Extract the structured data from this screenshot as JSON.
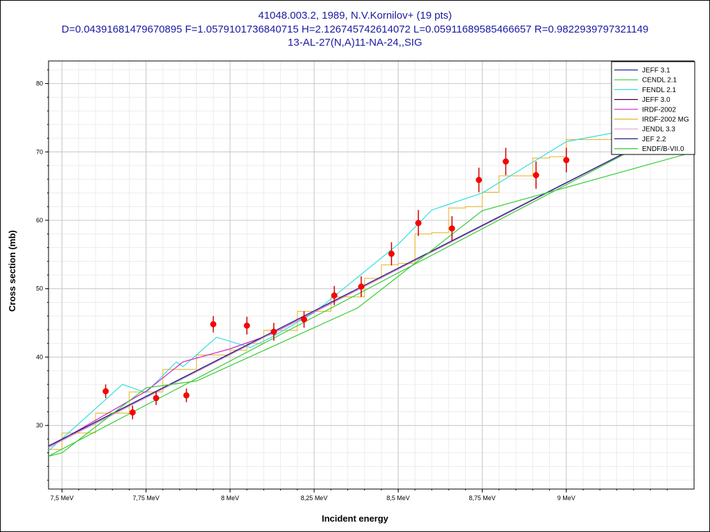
{
  "title_lines": [
    "41048.003.2, 1989, N.V.Kornilov+ (19 pts)",
    "D=0.04391681479670895 F=1.0579101736840715 H=2.126745742614072 L=0.05911689585466657 R=0.9822939797321149",
    "13-AL-27(N,A)11-NA-24,,SIG"
  ],
  "chart_data": {
    "type": "line",
    "xlabel": "Incident energy",
    "ylabel": "Cross section (mb)",
    "xlim": [
      7.46,
      9.38
    ],
    "ylim": [
      20.7,
      83.3
    ],
    "x_ticks": [
      7.5,
      7.75,
      8.0,
      8.25,
      8.5,
      8.75,
      9.0
    ],
    "x_tick_labels": [
      "7,5 MeV",
      "7,75 MeV",
      "8 MeV",
      "8,25 MeV",
      "8,5 MeV",
      "8,75 MeV",
      "9 MeV"
    ],
    "y_ticks": [
      30,
      40,
      50,
      60,
      70,
      80
    ],
    "y_tick_labels": [
      "30",
      "40",
      "50",
      "60",
      "70",
      "80"
    ],
    "grid": true,
    "legend_position": "top-right",
    "series": [
      {
        "name": "JEFF 3.1",
        "color": "#1a1a9a",
        "x": [
          7.46,
          9.38
        ],
        "y": [
          27.0,
          75.0
        ]
      },
      {
        "name": "CENDL 2.1",
        "color": "#33cc33",
        "x": [
          7.46,
          9.38
        ],
        "y": [
          25.5,
          75.0
        ]
      },
      {
        "name": "FENDL 2.1",
        "color": "#33dddd",
        "x": [
          7.46,
          7.68,
          7.75,
          7.84,
          7.86,
          7.96,
          8.06,
          8.12,
          8.25,
          8.5,
          8.6,
          8.75,
          9.0,
          9.38
        ],
        "y": [
          26.3,
          36.0,
          34.8,
          39.3,
          38.6,
          42.9,
          41.4,
          42.8,
          46.5,
          56.5,
          61.5,
          64.0,
          71.5,
          75.0
        ]
      },
      {
        "name": "JEFF 3.0",
        "color": "#400040",
        "x": [
          7.46,
          9.38
        ],
        "y": [
          26.8,
          75.0
        ]
      },
      {
        "name": "IRDF-2002",
        "color": "#cc22cc",
        "x": [
          7.46,
          7.75,
          7.86,
          8.0,
          8.12,
          9.38
        ],
        "y": [
          26.8,
          35.0,
          39.3,
          41.2,
          43.3,
          75.0
        ]
      },
      {
        "name": "IRDF-2002 MG",
        "color": "#e8b020",
        "x": [
          7.46,
          9.38
        ],
        "y": [
          26.0,
          75.0
        ]
      },
      {
        "name": "JENDL 3.3",
        "color": "#e0a0d0",
        "x": [
          7.46,
          9.38
        ],
        "y": [
          26.8,
          75.0
        ]
      },
      {
        "name": "JEF 2.2",
        "color": "#202080",
        "x": [
          7.46,
          9.38
        ],
        "y": [
          27.0,
          75.0
        ]
      },
      {
        "name": "ENDF/B-VII.0",
        "color": "#33cc33",
        "x": [
          7.46,
          7.5,
          7.75,
          7.9,
          8.38,
          8.75,
          9.38
        ],
        "y": [
          25.5,
          26.0,
          35.5,
          36.5,
          47.2,
          61.4,
          70.0
        ]
      }
    ],
    "step_series": {
      "name": "IRDF-2002 MG",
      "color": "#e8b020",
      "edges": [
        7.46,
        7.5,
        7.55,
        7.6,
        7.65,
        7.7,
        7.75,
        7.8,
        7.85,
        7.9,
        7.95,
        8.0,
        8.05,
        8.1,
        8.15,
        8.2,
        8.25,
        8.3,
        8.35,
        8.4,
        8.45,
        8.5,
        8.55,
        8.6,
        8.65,
        8.7,
        8.75,
        8.8,
        8.85,
        8.9,
        8.95,
        9.0,
        9.38
      ],
      "values": [
        26.5,
        28.9,
        28.9,
        31.8,
        31.8,
        34.9,
        34.9,
        38.2,
        38.2,
        40.3,
        40.3,
        41.0,
        42.0,
        43.9,
        43.9,
        46.7,
        46.7,
        48.8,
        48.8,
        51.5,
        53.5,
        53.7,
        58.0,
        58.2,
        61.8,
        62.0,
        64.1,
        66.5,
        66.5,
        69.1,
        69.3,
        71.8
      ]
    },
    "experimental": {
      "name": "41048.003.2",
      "color": "#ff0000",
      "x": [
        7.63,
        7.71,
        7.78,
        7.87,
        7.95,
        8.05,
        8.13,
        8.22,
        8.31,
        8.39,
        8.48,
        8.56,
        8.66,
        8.74,
        8.82,
        8.91,
        9.0
      ],
      "y": [
        35.0,
        31.9,
        34.0,
        34.4,
        44.8,
        44.6,
        43.7,
        45.5,
        49.0,
        50.3,
        55.1,
        59.6,
        58.8,
        65.9,
        68.6,
        66.6,
        68.8
      ],
      "yerr": [
        1.0,
        1.0,
        1.0,
        1.0,
        1.2,
        1.3,
        1.3,
        1.2,
        1.4,
        1.5,
        1.7,
        1.9,
        1.8,
        1.8,
        2.0,
        2.0,
        1.8
      ]
    }
  }
}
